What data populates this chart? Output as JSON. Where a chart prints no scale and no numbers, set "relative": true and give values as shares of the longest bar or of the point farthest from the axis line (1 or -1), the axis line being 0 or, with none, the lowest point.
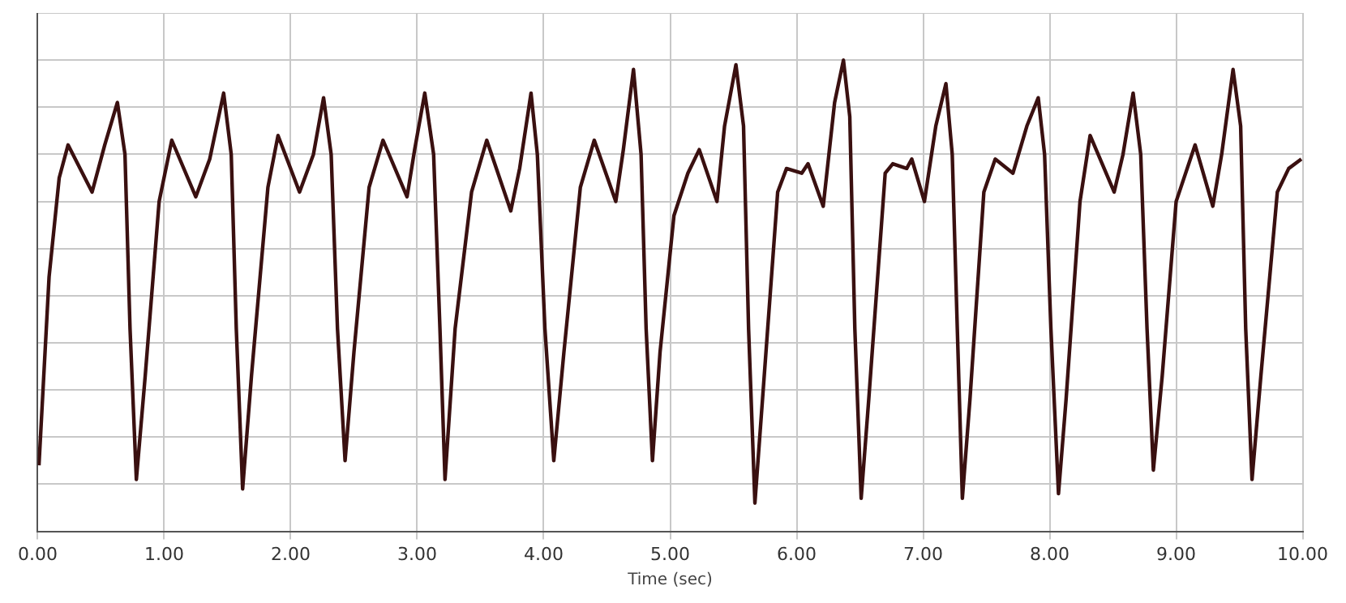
{
  "chart_data": {
    "type": "line",
    "relative": true,
    "xlabel": "Time (sec)",
    "xlim": [
      0,
      10
    ],
    "xticks": [
      {
        "value": 0,
        "label": "0.00"
      },
      {
        "value": 1,
        "label": "1.00"
      },
      {
        "value": 2,
        "label": "2.00"
      },
      {
        "value": 3,
        "label": "3.00"
      },
      {
        "value": 4,
        "label": "4.00"
      },
      {
        "value": 5,
        "label": "5.00"
      },
      {
        "value": 6,
        "label": "6.00"
      },
      {
        "value": 7,
        "label": "7.00"
      },
      {
        "value": 8,
        "label": "8.00"
      },
      {
        "value": 9,
        "label": "9.00"
      },
      {
        "value": 10,
        "label": "10.00"
      }
    ],
    "grid": true,
    "legend": false,
    "marker": "none",
    "line_style": "solid",
    "series": [
      {
        "color": "#3a1010",
        "x": [
          0.01,
          0.09,
          0.17,
          0.24,
          0.43,
          0.53,
          0.63,
          0.69,
          0.73,
          0.78,
          0.85,
          0.96,
          1.06,
          1.25,
          1.36,
          1.47,
          1.53,
          1.57,
          1.62,
          1.69,
          1.82,
          1.9,
          2.07,
          2.18,
          2.26,
          2.32,
          2.37,
          2.43,
          2.5,
          2.62,
          2.73,
          2.92,
          2.98,
          3.06,
          3.13,
          3.18,
          3.22,
          3.3,
          3.43,
          3.55,
          3.74,
          3.81,
          3.9,
          3.95,
          4.01,
          4.08,
          4.16,
          4.29,
          4.4,
          4.57,
          4.63,
          4.71,
          4.77,
          4.81,
          4.86,
          4.92,
          5.03,
          5.14,
          5.23,
          5.37,
          5.43,
          5.52,
          5.58,
          5.62,
          5.67,
          5.73,
          5.85,
          5.92,
          6.04,
          6.09,
          6.21,
          6.3,
          6.37,
          6.42,
          6.46,
          6.51,
          6.57,
          6.7,
          6.76,
          6.87,
          6.91,
          7.01,
          7.1,
          7.18,
          7.23,
          7.27,
          7.31,
          7.37,
          7.48,
          7.57,
          7.71,
          7.82,
          7.91,
          7.96,
          8.01,
          8.07,
          8.13,
          8.24,
          8.32,
          8.51,
          8.58,
          8.66,
          8.72,
          8.77,
          8.82,
          8.89,
          9.0,
          9.15,
          9.29,
          9.36,
          9.45,
          9.51,
          9.55,
          9.6,
          9.67,
          9.8,
          9.89,
          9.99
        ],
        "values": [
          0.14,
          0.54,
          0.75,
          0.82,
          0.72,
          0.82,
          0.91,
          0.8,
          0.43,
          0.11,
          0.33,
          0.7,
          0.83,
          0.71,
          0.79,
          0.93,
          0.8,
          0.43,
          0.09,
          0.33,
          0.73,
          0.84,
          0.72,
          0.8,
          0.92,
          0.8,
          0.43,
          0.15,
          0.38,
          0.73,
          0.83,
          0.71,
          0.81,
          0.93,
          0.8,
          0.43,
          0.11,
          0.43,
          0.72,
          0.83,
          0.68,
          0.77,
          0.93,
          0.8,
          0.43,
          0.15,
          0.38,
          0.73,
          0.83,
          0.7,
          0.81,
          0.98,
          0.8,
          0.43,
          0.15,
          0.38,
          0.67,
          0.76,
          0.81,
          0.7,
          0.86,
          0.99,
          0.86,
          0.43,
          0.06,
          0.28,
          0.72,
          0.77,
          0.76,
          0.78,
          0.69,
          0.91,
          1.0,
          0.88,
          0.43,
          0.07,
          0.28,
          0.76,
          0.78,
          0.77,
          0.79,
          0.7,
          0.86,
          0.95,
          0.8,
          0.43,
          0.07,
          0.28,
          0.72,
          0.79,
          0.76,
          0.86,
          0.92,
          0.8,
          0.43,
          0.08,
          0.28,
          0.7,
          0.84,
          0.72,
          0.8,
          0.93,
          0.8,
          0.43,
          0.13,
          0.33,
          0.7,
          0.82,
          0.69,
          0.8,
          0.98,
          0.86,
          0.43,
          0.11,
          0.33,
          0.72,
          0.77,
          0.79
        ]
      }
    ]
  }
}
